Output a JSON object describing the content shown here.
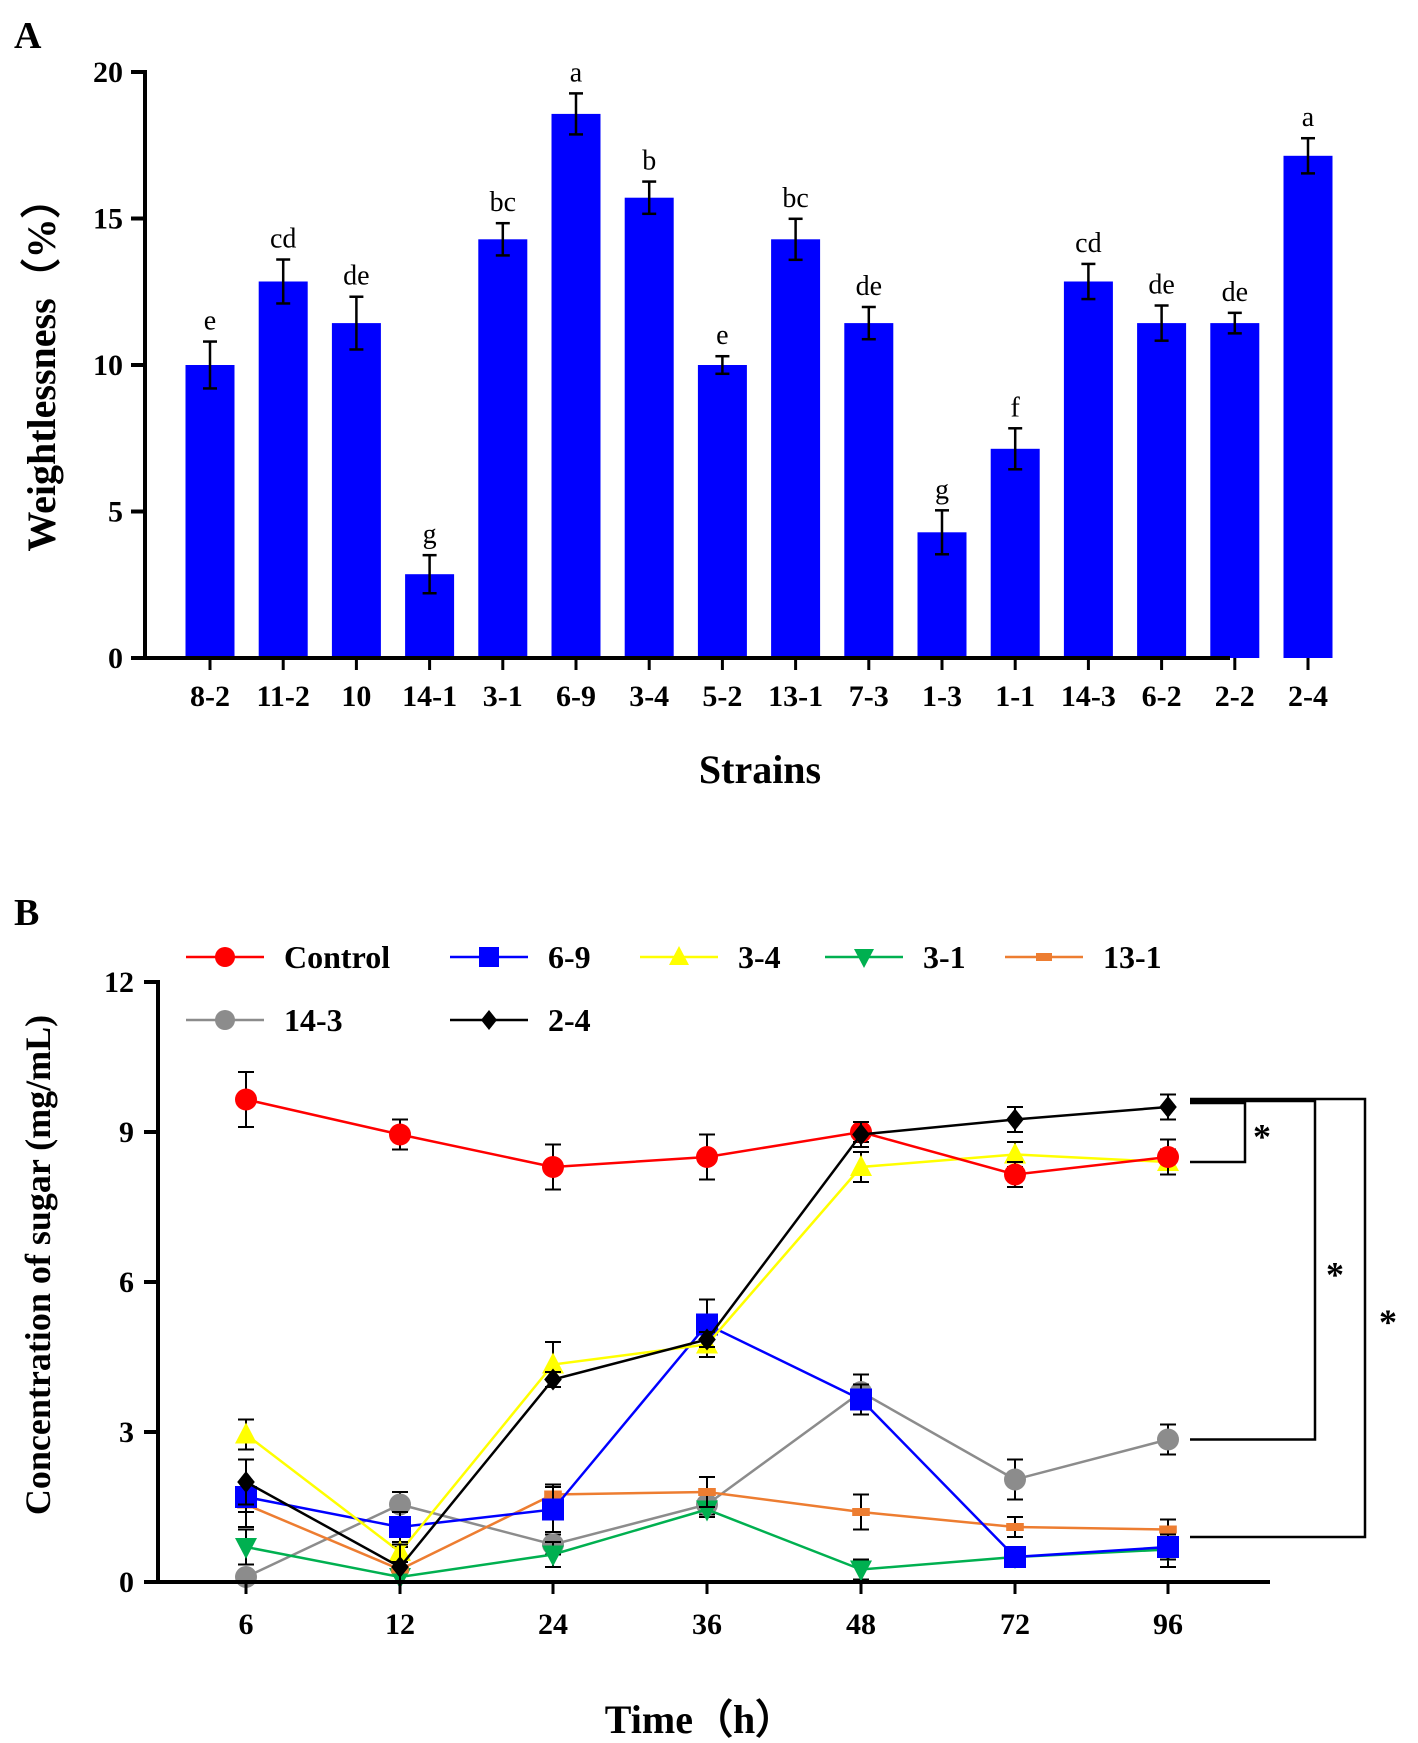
{
  "panels": {
    "a_label": "A",
    "b_label": "B"
  },
  "colors": {
    "bar": "#0000ff",
    "axis": "#000000"
  },
  "chart_data": [
    {
      "id": "A",
      "type": "bar",
      "xlabel": "Strains",
      "ylabel": "Weightlessness（%）",
      "ylim": [
        0,
        20
      ],
      "yticks": [
        0,
        5,
        10,
        15,
        20
      ],
      "categories": [
        "8-2",
        "11-2",
        "10",
        "14-1",
        "3-1",
        "6-9",
        "3-4",
        "5-2",
        "13-1",
        "7-3",
        "1-3",
        "1-1",
        "14-3",
        "6-2",
        "2-2",
        "2-4"
      ],
      "values": [
        10.0,
        12.85,
        11.43,
        2.86,
        14.29,
        18.57,
        15.71,
        10.0,
        14.29,
        11.43,
        4.29,
        7.14,
        12.85,
        11.43,
        11.43,
        17.14
      ],
      "errors": [
        0.8,
        0.75,
        0.9,
        0.65,
        0.55,
        0.7,
        0.55,
        0.3,
        0.7,
        0.55,
        0.75,
        0.7,
        0.6,
        0.6,
        0.35,
        0.6
      ],
      "significance": [
        "e",
        "cd",
        "de",
        "g",
        "bc",
        "a",
        "b",
        "e",
        "bc",
        "de",
        "g",
        "f",
        "cd",
        "de",
        "de",
        "a"
      ]
    },
    {
      "id": "B",
      "type": "line",
      "xlabel": "Time（h）",
      "ylabel": "Concentration of sugar (mg/mL)",
      "x": [
        "6",
        "12",
        "24",
        "36",
        "48",
        "72",
        "96"
      ],
      "ylim": [
        0,
        12
      ],
      "yticks": [
        0,
        3,
        6,
        9,
        12
      ],
      "series": [
        {
          "name": "Control",
          "color": "#ff0000",
          "marker": "circle",
          "values": [
            9.65,
            8.95,
            8.3,
            8.5,
            9.0,
            8.15,
            8.5
          ],
          "errors": [
            0.55,
            0.3,
            0.45,
            0.45,
            0.2,
            0.25,
            0.35
          ]
        },
        {
          "name": "6-9",
          "color": "#0000ff",
          "marker": "square",
          "values": [
            1.7,
            1.1,
            1.45,
            5.15,
            3.65,
            0.5,
            0.7
          ],
          "errors": [
            0.3,
            0.3,
            0.45,
            0.5,
            0.3,
            0.2,
            0.25
          ]
        },
        {
          "name": "3-4",
          "color": "#ffff00",
          "marker": "triangle-up",
          "values": [
            2.95,
            0.6,
            4.35,
            4.75,
            8.3,
            8.55,
            8.4
          ],
          "errors": [
            0.3,
            0.2,
            0.45,
            0.25,
            0.3,
            0.25,
            0.25
          ]
        },
        {
          "name": "3-1",
          "color": "#00b050",
          "marker": "triangle-down",
          "values": [
            0.7,
            0.1,
            0.55,
            1.45,
            0.25,
            0.5,
            0.65
          ],
          "errors": [
            0.35,
            0.1,
            0.25,
            0.15,
            0.2,
            0.2,
            0.35
          ]
        },
        {
          "name": "13-1",
          "color": "#ed7d31",
          "marker": "dash",
          "values": [
            1.55,
            0.25,
            1.75,
            1.8,
            1.4,
            1.1,
            1.05
          ],
          "errors": [
            0.45,
            0.45,
            0.2,
            0.3,
            0.35,
            0.2,
            0.2
          ]
        },
        {
          "name": "14-3",
          "color": "#8c8c8c",
          "marker": "circle",
          "values": [
            0.1,
            1.55,
            0.75,
            1.55,
            3.8,
            2.05,
            2.85
          ],
          "errors": [
            0.1,
            0.25,
            0.2,
            0.2,
            0.35,
            0.4,
            0.3
          ]
        },
        {
          "name": "2-4",
          "color": "#000000",
          "marker": "diamond",
          "values": [
            2.0,
            0.3,
            4.05,
            4.85,
            8.95,
            9.25,
            9.5
          ],
          "errors": [
            0.45,
            0.45,
            0.15,
            0.15,
            0.25,
            0.25,
            0.25
          ]
        }
      ],
      "annotations": {
        "brackets": [
          {
            "label": "*",
            "from_series": "2-4",
            "to_series": "3-4"
          },
          {
            "label": "*",
            "from_series": "2-4",
            "to_series": "14-3"
          },
          {
            "label": "*",
            "from_series": "2-4",
            "to_series": "13-1"
          }
        ]
      }
    }
  ]
}
